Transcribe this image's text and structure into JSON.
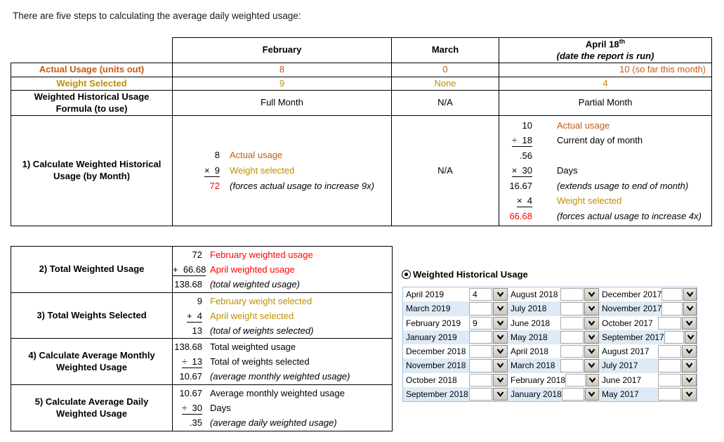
{
  "title": "There are five steps to calculating the average daily weighted usage:",
  "colors": {
    "orange": "#C55A11",
    "gold": "#BF8F00",
    "red": "#FF0000",
    "panel_border": "#9CC2E5",
    "panel_alt_row": "#DEEBF7",
    "dropdown_bg_top": "#E9E7E2",
    "dropdown_bg_bottom": "#CBC8C1",
    "dropdown_border": "#8B8B83"
  },
  "top_table": {
    "header": {
      "february": "February",
      "march": "March",
      "april_date": "April 18",
      "april_date_suffix": "th",
      "april_note": "(date the report is run)"
    },
    "rows": [
      {
        "label": "Actual Usage (units out)",
        "february": "8",
        "march": "0",
        "april": "10 (so far this month)"
      },
      {
        "label": "Weight Selected",
        "february": "9",
        "march": "None",
        "april": "4"
      },
      {
        "label": "Weighted Historical Usage Formula (to use)",
        "february": "Full Month",
        "march": "N/A",
        "april": "Partial Month"
      }
    ],
    "step1": {
      "label": "1) Calculate Weighted Historical Usage (by Month)",
      "march": "N/A",
      "february_calc": [
        {
          "num": "8",
          "label": "Actual usage",
          "label_color": "orange"
        },
        {
          "num": "×  9",
          "underline": true,
          "label": "Weight selected",
          "label_color": "gold"
        },
        {
          "num": "72",
          "num_color": "red",
          "label": "(forces actual usage to increase 9x)",
          "italic": true
        }
      ],
      "april_calc": [
        {
          "num": "10",
          "label": "Actual usage",
          "label_color": "orange"
        },
        {
          "num": "÷  18",
          "underline": true,
          "label": "Current day of month"
        },
        {
          "num": ".56",
          "label": ""
        },
        {
          "num": "×  30",
          "underline": true,
          "label": "Days"
        },
        {
          "num": "16.67",
          "label": "(extends usage to end of month)",
          "italic": true
        },
        {
          "num": "×  4",
          "underline": true,
          "label": "Weight selected",
          "label_color": "gold"
        },
        {
          "num": "66.68",
          "num_color": "red",
          "label": "(forces actual usage to increase 4x)",
          "italic": true
        }
      ]
    }
  },
  "steps_table": {
    "rows": [
      {
        "label": "2) Total Weighted Usage",
        "calc": [
          {
            "num": "72",
            "label": "February weighted usage",
            "label_color": "red"
          },
          {
            "num": "+  66.68",
            "underline": true,
            "label": "April weighted usage",
            "label_color": "red"
          },
          {
            "num": "138.68",
            "label": "(total weighted usage)",
            "italic": true
          }
        ]
      },
      {
        "label": "3) Total Weights Selected",
        "calc": [
          {
            "num": "9",
            "label": "February weight selected",
            "label_color": "gold"
          },
          {
            "num": "+  4",
            "underline": true,
            "label": "April weight selected",
            "label_color": "gold"
          },
          {
            "num": "13",
            "label": "(total of weights selected)",
            "italic": true
          }
        ]
      },
      {
        "label": "4) Calculate Average Monthly Weighted Usage",
        "calc": [
          {
            "num": "138.68",
            "label": "Total weighted usage"
          },
          {
            "num": "÷  13",
            "underline": true,
            "label": "Total of weights selected"
          },
          {
            "num": "10.67",
            "label": "(average monthly weighted usage)",
            "italic": true
          }
        ]
      },
      {
        "label": "5) Calculate Average Daily Weighted Usage",
        "calc": [
          {
            "num": "10.67",
            "label": "Average monthly weighted usage"
          },
          {
            "num": "÷  30",
            "underline": true,
            "label": "Days"
          },
          {
            "num": ".35",
            "label": "(average daily weighted usage)",
            "italic": true
          }
        ]
      }
    ]
  },
  "usage_panel": {
    "radio_label": "Weighted Historical Usage",
    "radio_selected": true,
    "rows": [
      [
        {
          "month": "April 2019",
          "value": "4"
        },
        {
          "month": "August 2018",
          "value": ""
        },
        {
          "month": "December 2017",
          "value": ""
        }
      ],
      [
        {
          "month": "March 2019",
          "value": ""
        },
        {
          "month": "July 2018",
          "value": ""
        },
        {
          "month": "November 2017",
          "value": ""
        }
      ],
      [
        {
          "month": "February 2019",
          "value": "9"
        },
        {
          "month": "June 2018",
          "value": ""
        },
        {
          "month": "October 2017",
          "value": ""
        }
      ],
      [
        {
          "month": "January 2019",
          "value": ""
        },
        {
          "month": "May 2018",
          "value": ""
        },
        {
          "month": "September 2017",
          "value": ""
        }
      ],
      [
        {
          "month": "December 2018",
          "value": ""
        },
        {
          "month": "April 2018",
          "value": ""
        },
        {
          "month": "August 2017",
          "value": ""
        }
      ],
      [
        {
          "month": "November 2018",
          "value": ""
        },
        {
          "month": "March 2018",
          "value": ""
        },
        {
          "month": "July 2017",
          "value": ""
        }
      ],
      [
        {
          "month": "October 2018",
          "value": ""
        },
        {
          "month": "February 2018",
          "value": ""
        },
        {
          "month": "June 2017",
          "value": ""
        }
      ],
      [
        {
          "month": "September 2018",
          "value": ""
        },
        {
          "month": "January 2018",
          "value": ""
        },
        {
          "month": "May 2017",
          "value": ""
        }
      ]
    ]
  }
}
